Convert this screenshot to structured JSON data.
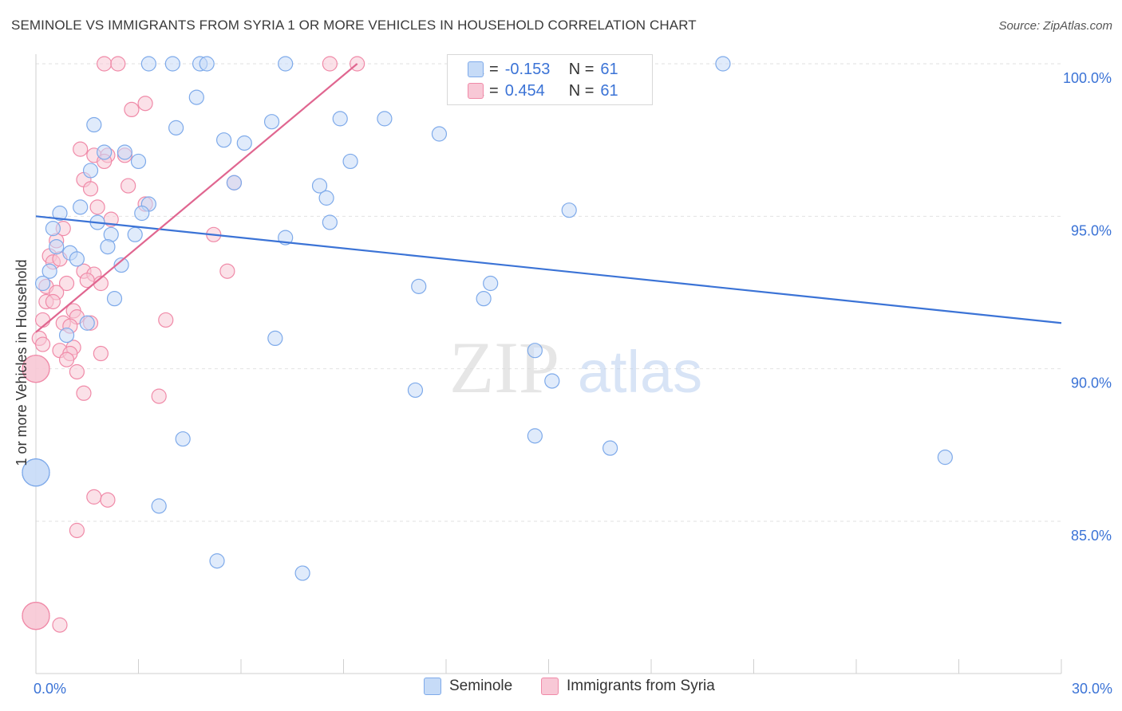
{
  "title": "SEMINOLE VS IMMIGRANTS FROM SYRIA 1 OR MORE VEHICLES IN HOUSEHOLD CORRELATION CHART",
  "source": "Source: ZipAtlas.com",
  "watermark": {
    "zip": "ZIP",
    "atlas": "atlas"
  },
  "legend_top": [
    {
      "r_label": "R =",
      "r_value": "-0.153",
      "n_label": "N =",
      "n_value": "61",
      "color": "#7eaaea"
    },
    {
      "r_label": "R =",
      "r_value": "0.454",
      "n_label": "N =",
      "n_value": "61",
      "color": "#f08aa8"
    }
  ],
  "chart_data": {
    "type": "scatter",
    "title": "SEMINOLE VS IMMIGRANTS FROM SYRIA 1 OR MORE VEHICLES IN HOUSEHOLD CORRELATION CHART",
    "xlabel": "",
    "ylabel": "1 or more Vehicles in Household",
    "xlim": [
      0,
      30
    ],
    "ylim": [
      80.5,
      100.7
    ],
    "x_tick_labels": [
      {
        "value": 0,
        "label": "0.0%"
      },
      {
        "value": 30,
        "label": "30.0%"
      }
    ],
    "y_tick_labels": [
      {
        "value": 100,
        "label": "100.0%"
      },
      {
        "value": 95,
        "label": "95.0%"
      },
      {
        "value": 90,
        "label": "90.0%"
      },
      {
        "value": 85,
        "label": "85.0%"
      }
    ],
    "grid": true,
    "legend_position": "bottom",
    "series": [
      {
        "name": "Seminole",
        "color": "#7eaaea",
        "fill": "#c6dbf7",
        "trend": {
          "x": [
            0,
            30
          ],
          "y": [
            95.0,
            91.5
          ]
        },
        "points": [
          {
            "x": 3.3,
            "y": 100.0
          },
          {
            "x": 4.0,
            "y": 100.0
          },
          {
            "x": 4.8,
            "y": 100.0
          },
          {
            "x": 5.0,
            "y": 100.0
          },
          {
            "x": 7.3,
            "y": 100.0
          },
          {
            "x": 20.1,
            "y": 100.0
          },
          {
            "x": 4.7,
            "y": 98.9
          },
          {
            "x": 1.7,
            "y": 98.0
          },
          {
            "x": 4.1,
            "y": 97.9
          },
          {
            "x": 6.9,
            "y": 98.1
          },
          {
            "x": 8.9,
            "y": 98.2
          },
          {
            "x": 10.2,
            "y": 98.2
          },
          {
            "x": 11.8,
            "y": 97.7
          },
          {
            "x": 5.5,
            "y": 97.5
          },
          {
            "x": 6.1,
            "y": 97.4
          },
          {
            "x": 2.0,
            "y": 97.1
          },
          {
            "x": 2.6,
            "y": 97.1
          },
          {
            "x": 3.0,
            "y": 96.8
          },
          {
            "x": 9.2,
            "y": 96.8
          },
          {
            "x": 1.6,
            "y": 96.5
          },
          {
            "x": 5.8,
            "y": 96.1
          },
          {
            "x": 8.3,
            "y": 96.0
          },
          {
            "x": 8.5,
            "y": 95.6
          },
          {
            "x": 1.3,
            "y": 95.3
          },
          {
            "x": 3.3,
            "y": 95.4
          },
          {
            "x": 0.7,
            "y": 95.1
          },
          {
            "x": 3.1,
            "y": 95.1
          },
          {
            "x": 15.6,
            "y": 95.2
          },
          {
            "x": 1.8,
            "y": 94.8
          },
          {
            "x": 8.6,
            "y": 94.8
          },
          {
            "x": 0.5,
            "y": 94.6
          },
          {
            "x": 2.2,
            "y": 94.4
          },
          {
            "x": 2.9,
            "y": 94.4
          },
          {
            "x": 7.3,
            "y": 94.3
          },
          {
            "x": 0.6,
            "y": 94.0
          },
          {
            "x": 2.1,
            "y": 94.0
          },
          {
            "x": 1.0,
            "y": 93.8
          },
          {
            "x": 1.2,
            "y": 93.6
          },
          {
            "x": 2.5,
            "y": 93.4
          },
          {
            "x": 0.4,
            "y": 93.2
          },
          {
            "x": 0.2,
            "y": 92.8
          },
          {
            "x": 11.2,
            "y": 92.7
          },
          {
            "x": 13.3,
            "y": 92.8
          },
          {
            "x": 2.3,
            "y": 92.3
          },
          {
            "x": 13.1,
            "y": 92.3
          },
          {
            "x": 1.5,
            "y": 91.5
          },
          {
            "x": 0.9,
            "y": 91.1
          },
          {
            "x": 7.0,
            "y": 91.0
          },
          {
            "x": 14.6,
            "y": 90.6
          },
          {
            "x": 15.1,
            "y": 89.6
          },
          {
            "x": 11.1,
            "y": 89.3
          },
          {
            "x": 4.3,
            "y": 87.7
          },
          {
            "x": 14.6,
            "y": 87.8
          },
          {
            "x": 16.8,
            "y": 87.4
          },
          {
            "x": 26.6,
            "y": 87.1
          },
          {
            "x": 3.6,
            "y": 85.5
          },
          {
            "x": 5.3,
            "y": 83.7
          },
          {
            "x": 7.8,
            "y": 83.3
          },
          {
            "x": 0.0,
            "y": 86.6
          },
          {
            "x": 0.0,
            "y": 86.6
          },
          {
            "x": 0.0,
            "y": 86.6
          }
        ]
      },
      {
        "name": "Immigrants from Syria",
        "color": "#f08aa8",
        "fill": "#f8c8d6",
        "trend": {
          "x": [
            0,
            9.4
          ],
          "y": [
            91.2,
            100.0
          ]
        },
        "points": [
          {
            "x": 2.0,
            "y": 100.0
          },
          {
            "x": 2.4,
            "y": 100.0
          },
          {
            "x": 8.6,
            "y": 100.0
          },
          {
            "x": 9.4,
            "y": 100.0
          },
          {
            "x": 3.2,
            "y": 98.7
          },
          {
            "x": 2.8,
            "y": 98.5
          },
          {
            "x": 1.3,
            "y": 97.2
          },
          {
            "x": 1.7,
            "y": 97.0
          },
          {
            "x": 2.1,
            "y": 97.0
          },
          {
            "x": 2.6,
            "y": 97.0
          },
          {
            "x": 2.0,
            "y": 96.8
          },
          {
            "x": 1.4,
            "y": 96.2
          },
          {
            "x": 5.8,
            "y": 96.1
          },
          {
            "x": 2.7,
            "y": 96.0
          },
          {
            "x": 1.6,
            "y": 95.9
          },
          {
            "x": 3.2,
            "y": 95.4
          },
          {
            "x": 1.8,
            "y": 95.3
          },
          {
            "x": 2.2,
            "y": 94.9
          },
          {
            "x": 0.8,
            "y": 94.6
          },
          {
            "x": 5.2,
            "y": 94.4
          },
          {
            "x": 0.6,
            "y": 94.2
          },
          {
            "x": 0.4,
            "y": 93.7
          },
          {
            "x": 0.5,
            "y": 93.5
          },
          {
            "x": 0.7,
            "y": 93.6
          },
          {
            "x": 5.6,
            "y": 93.2
          },
          {
            "x": 1.4,
            "y": 93.2
          },
          {
            "x": 1.7,
            "y": 93.1
          },
          {
            "x": 1.5,
            "y": 92.9
          },
          {
            "x": 1.9,
            "y": 92.8
          },
          {
            "x": 0.9,
            "y": 92.8
          },
          {
            "x": 0.3,
            "y": 92.7
          },
          {
            "x": 0.6,
            "y": 92.5
          },
          {
            "x": 0.3,
            "y": 92.2
          },
          {
            "x": 0.5,
            "y": 92.2
          },
          {
            "x": 1.1,
            "y": 91.9
          },
          {
            "x": 1.2,
            "y": 91.7
          },
          {
            "x": 3.8,
            "y": 91.6
          },
          {
            "x": 0.2,
            "y": 91.6
          },
          {
            "x": 0.8,
            "y": 91.5
          },
          {
            "x": 1.6,
            "y": 91.5
          },
          {
            "x": 1.0,
            "y": 91.4
          },
          {
            "x": 0.1,
            "y": 91.0
          },
          {
            "x": 0.2,
            "y": 90.8
          },
          {
            "x": 1.1,
            "y": 90.7
          },
          {
            "x": 0.7,
            "y": 90.6
          },
          {
            "x": 1.0,
            "y": 90.5
          },
          {
            "x": 1.9,
            "y": 90.5
          },
          {
            "x": 0.9,
            "y": 90.3
          },
          {
            "x": 0.0,
            "y": 90.0
          },
          {
            "x": 1.2,
            "y": 89.9
          },
          {
            "x": 1.4,
            "y": 89.2
          },
          {
            "x": 3.6,
            "y": 89.1
          },
          {
            "x": 1.7,
            "y": 85.8
          },
          {
            "x": 2.1,
            "y": 85.7
          },
          {
            "x": 1.2,
            "y": 84.7
          },
          {
            "x": 0.0,
            "y": 81.9
          },
          {
            "x": 0.7,
            "y": 81.6
          },
          {
            "x": 0.0,
            "y": 90.0
          },
          {
            "x": 0.0,
            "y": 90.0
          },
          {
            "x": 0.0,
            "y": 81.9
          },
          {
            "x": 0.0,
            "y": 81.9
          }
        ]
      }
    ]
  }
}
